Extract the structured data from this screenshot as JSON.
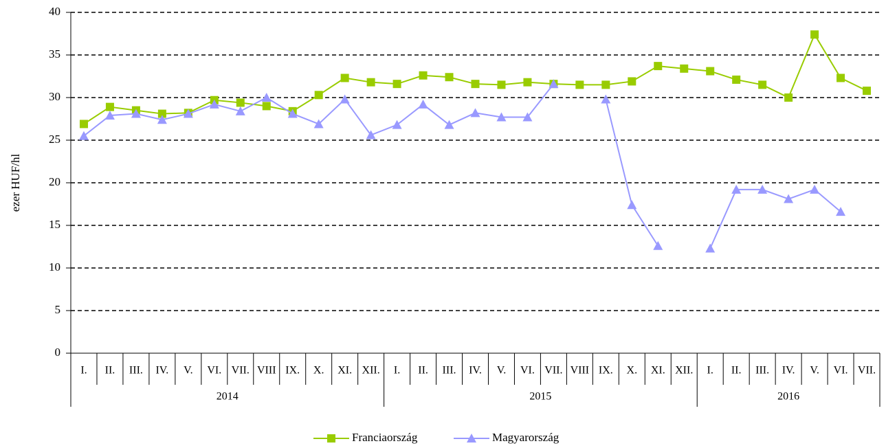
{
  "chart_data": {
    "type": "line",
    "y_label": "ezer HUF/hl",
    "categories": [
      "I.",
      "II.",
      "III.",
      "IV.",
      "V.",
      "VI.",
      "VII.",
      "VIII",
      "IX.",
      "X.",
      "XI.",
      "XII.",
      "I.",
      "II.",
      "III.",
      "IV.",
      "V.",
      "VI.",
      "VII.",
      "VIII",
      "IX.",
      "X.",
      "XI.",
      "XII.",
      "I.",
      "II.",
      "III.",
      "IV.",
      "V.",
      "VI.",
      "VII."
    ],
    "groups": [
      {
        "label": "2014",
        "span": 12
      },
      {
        "label": "2015",
        "span": 12
      },
      {
        "label": "2016",
        "span": 7
      }
    ],
    "series": [
      {
        "name": "Franciaország",
        "color": "#99cc00",
        "marker": "square",
        "values": [
          26.9,
          28.9,
          28.5,
          28.1,
          28.2,
          29.7,
          29.4,
          29.0,
          28.4,
          30.3,
          32.3,
          31.8,
          31.6,
          32.6,
          32.4,
          31.6,
          31.5,
          31.8,
          31.6,
          31.5,
          31.5,
          31.9,
          33.7,
          33.4,
          33.1,
          32.1,
          31.5,
          30.0,
          37.4,
          32.3,
          30.8
        ]
      },
      {
        "name": "Magyarország",
        "color": "#9999ff",
        "marker": "triangle",
        "values": [
          25.5,
          27.9,
          28.1,
          27.4,
          28.1,
          29.2,
          28.4,
          30.0,
          28.1,
          26.9,
          29.8,
          25.6,
          26.8,
          29.2,
          26.8,
          28.2,
          27.7,
          27.7,
          31.6,
          null,
          29.8,
          17.4,
          12.6,
          null,
          12.3,
          19.2,
          19.2,
          18.1,
          19.2,
          16.6,
          null
        ]
      }
    ],
    "ylim": [
      0,
      40
    ],
    "yticks": [
      0,
      5,
      10,
      15,
      20,
      25,
      30,
      35,
      40
    ],
    "grid": true,
    "legend": "bottom"
  }
}
